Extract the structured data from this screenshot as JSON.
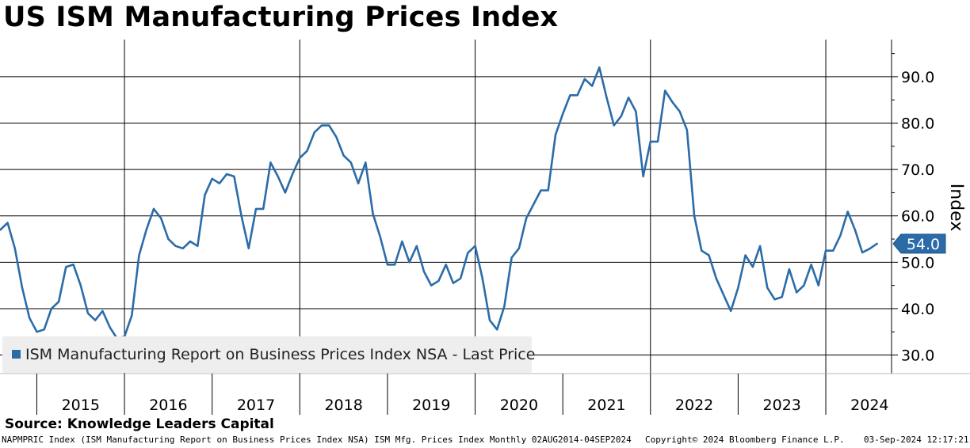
{
  "title": "US ISM Manufacturing Prices Index",
  "source": "Source: Knowledge Leaders Capital",
  "footer": {
    "description": "NAPMPRIC Index (ISM Manufacturing Report on Business Prices Index NSA) ISM Mfg. Prices Index  Monthly 02AUG2014-04SEP2024",
    "copyright": "Copyright© 2024 Bloomberg Finance L.P.",
    "timestamp": "03-Sep-2024 12:17:21"
  },
  "legend": {
    "label": "ISM Manufacturing Report on Business Prices Index NSA - Last Price"
  },
  "colors": {
    "series": "#2b6ca8",
    "grid": "#000000",
    "legend_bg": "#eeeeee"
  },
  "chart_data": {
    "type": "line",
    "title": "US ISM Manufacturing Prices Index",
    "ylabel": "Index",
    "xlabel": "",
    "ylim": [
      26,
      98
    ],
    "yticks": [
      30,
      40,
      50,
      60,
      70,
      80,
      90
    ],
    "ytick_labels": [
      "30.0",
      "40.0",
      "50.0",
      "60.0",
      "70.0",
      "80.0",
      "90.0"
    ],
    "xlim": [
      2014.58,
      2024.75
    ],
    "year_labels": [
      "2015",
      "2016",
      "2017",
      "2018",
      "2019",
      "2020",
      "2021",
      "2022",
      "2023",
      "2024"
    ],
    "last_price_label": "54.0",
    "series": [
      {
        "name": "ISM Manufacturing Report on Business Prices Index NSA - Last Price",
        "start": [
          2014,
          8
        ],
        "values": [
          57.0,
          58.5,
          53.0,
          44.5,
          38.0,
          35.0,
          35.5,
          40.0,
          41.5,
          49.0,
          49.5,
          45.0,
          39.0,
          37.5,
          39.5,
          36.0,
          33.5,
          34.0,
          38.5,
          51.5,
          57.0,
          61.5,
          59.5,
          55.0,
          53.5,
          53.0,
          54.5,
          53.5,
          64.5,
          68.0,
          67.0,
          69.0,
          68.5,
          60.0,
          53.0,
          61.5,
          61.5,
          71.5,
          68.5,
          65.0,
          69.0,
          72.5,
          74.0,
          78.0,
          79.5,
          79.5,
          77.0,
          73.0,
          71.5,
          67.0,
          71.5,
          60.5,
          55.5,
          49.5,
          49.5,
          54.5,
          50.0,
          53.5,
          48.0,
          45.0,
          46.0,
          49.5,
          45.5,
          46.5,
          52.0,
          53.5,
          46.5,
          37.5,
          35.5,
          40.5,
          51.0,
          53.0,
          59.5,
          62.5,
          65.5,
          65.5,
          77.5,
          82.0,
          86.0,
          86.0,
          89.5,
          88.0,
          92.0,
          85.5,
          79.5,
          81.5,
          85.5,
          82.5,
          68.5,
          76.0,
          76.0,
          87.0,
          84.5,
          82.5,
          78.5,
          60.0,
          52.5,
          51.5,
          46.5,
          43.0,
          39.5,
          44.5,
          51.5,
          49.0,
          53.5,
          44.5,
          42.0,
          42.5,
          48.5,
          43.5,
          45.0,
          49.5,
          45.0,
          52.5,
          52.5,
          55.8,
          60.9,
          57.0,
          52.1,
          52.9,
          54.0
        ]
      }
    ]
  }
}
